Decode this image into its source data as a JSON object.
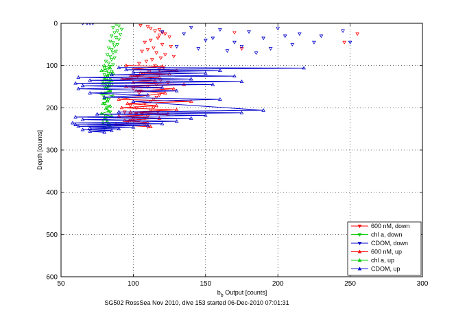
{
  "chart_data": {
    "type": "scatter",
    "title": "",
    "xlabel_main": "b",
    "xlabel_sub": "b",
    "xlabel_rest": " Output [counts]",
    "ylabel": "Depth [counts]",
    "caption": "SG502 RossSea Nov 2010, dive 153 started 06-Dec-2010 07:01:31",
    "xlim": [
      50,
      300
    ],
    "ylim": [
      0,
      600
    ],
    "y_reversed": true,
    "grid": true,
    "legend_position": "bottom-right",
    "xticks": [
      50,
      100,
      150,
      200,
      250,
      300
    ],
    "yticks": [
      0,
      100,
      200,
      300,
      400,
      500,
      600
    ],
    "series": [
      {
        "name": "600 nM, down",
        "color": "#ff0000",
        "marker": "triangle-down",
        "lines": false,
        "x": [
          105,
          110,
          112,
          118,
          115,
          120,
          122,
          118,
          125,
          117,
          112,
          108,
          120,
          126,
          114,
          110,
          106,
          116,
          122,
          128,
          119,
          113,
          109,
          104,
          115,
          121,
          118,
          111,
          107,
          103,
          112,
          119,
          124,
          116,
          110,
          105,
          118,
          114,
          108,
          102,
          112,
          117,
          106,
          110,
          100,
          104,
          96,
          108,
          112,
          98,
          116,
          104,
          100,
          110,
          114,
          94,
          102,
          108,
          98,
          246,
          255,
          170,
          175
        ],
        "y": [
          5,
          8,
          12,
          15,
          18,
          22,
          25,
          28,
          32,
          35,
          40,
          45,
          50,
          55,
          58,
          62,
          66,
          70,
          74,
          78,
          82,
          86,
          90,
          95,
          100,
          105,
          110,
          115,
          120,
          125,
          130,
          135,
          140,
          145,
          150,
          160,
          170,
          180,
          190,
          200,
          205,
          210,
          215,
          220,
          225,
          230,
          235,
          240,
          185,
          195,
          175,
          165,
          155,
          245,
          200,
          210,
          215,
          225,
          230,
          45,
          25,
          22,
          60
        ]
      },
      {
        "name": "chl a, down",
        "color": "#00cc00",
        "marker": "triangle-down",
        "lines": false,
        "x": [
          88,
          90,
          86,
          92,
          89,
          87,
          91,
          85,
          88,
          90,
          84,
          86,
          89,
          87,
          83,
          85,
          88,
          86,
          82,
          84,
          87,
          85,
          81,
          83,
          86,
          84,
          80,
          82,
          85,
          83,
          80,
          82,
          84,
          81,
          79,
          83,
          85,
          80,
          82,
          84,
          81,
          79,
          83,
          80,
          82,
          84,
          81,
          79,
          83,
          80
        ],
        "y": [
          2,
          6,
          10,
          14,
          18,
          22,
          26,
          30,
          34,
          38,
          42,
          46,
          50,
          54,
          58,
          62,
          66,
          70,
          74,
          78,
          82,
          86,
          90,
          94,
          98,
          102,
          106,
          110,
          114,
          118,
          122,
          126,
          130,
          134,
          138,
          142,
          146,
          150,
          155,
          160,
          165,
          170,
          180,
          190,
          200,
          210,
          220,
          230,
          240,
          248
        ]
      },
      {
        "name": "CDOM, down",
        "color": "#0000cc",
        "marker": "triangle-down",
        "lines": false,
        "x": [
          65,
          70,
          72,
          68,
          140,
          160,
          180,
          200,
          215,
          230,
          245,
          150,
          170,
          190,
          210,
          130,
          145,
          165,
          185,
          205,
          225,
          120,
          135,
          155,
          175,
          195,
          250
        ],
        "y": [
          0,
          0,
          0,
          0,
          10,
          15,
          20,
          12,
          25,
          30,
          18,
          40,
          45,
          35,
          50,
          55,
          60,
          65,
          70,
          30,
          45,
          20,
          25,
          35,
          55,
          60,
          45
        ]
      },
      {
        "name": "600 nM, up",
        "color": "#ff0000",
        "marker": "triangle-up",
        "lines": true,
        "x": [
          95,
          120,
          100,
          130,
          105,
          125,
          98,
          118,
          92,
          115,
          100,
          135,
          95,
          128,
          102,
          122,
          90,
          140,
          96,
          116,
          92,
          130,
          98,
          124,
          90,
          118,
          94,
          110,
          88,
          112
        ],
        "y": [
          100,
          102,
          108,
          112,
          118,
          120,
          125,
          128,
          132,
          136,
          140,
          145,
          150,
          155,
          160,
          165,
          180,
          185,
          190,
          195,
          200,
          205,
          210,
          215,
          220,
          225,
          230,
          235,
          240,
          245
        ]
      },
      {
        "name": "chl a, up",
        "color": "#00cc00",
        "marker": "triangle-up",
        "lines": true,
        "x": [
          80,
          84,
          78,
          86,
          82,
          80,
          85,
          79,
          83,
          81,
          84,
          78,
          86,
          80,
          82,
          79,
          84,
          81,
          83,
          78,
          85,
          80,
          82,
          79,
          84
        ],
        "y": [
          100,
          106,
          112,
          118,
          124,
          130,
          136,
          142,
          148,
          154,
          160,
          166,
          172,
          178,
          184,
          190,
          196,
          202,
          208,
          214,
          220,
          226,
          232,
          238,
          244
        ]
      },
      {
        "name": "CDOM, up",
        "color": "#0000cc",
        "marker": "triangle-up",
        "lines": true,
        "x": [
          90,
          218,
          95,
          160,
          100,
          150,
          85,
          170,
          62,
          140,
          70,
          175,
          60,
          155,
          65,
          120,
          62,
          130,
          70,
          110,
          80,
          160,
          100,
          190,
          90,
          175,
          75,
          150,
          60,
          140,
          65,
          130,
          58,
          120,
          60,
          110,
          62,
          100,
          70,
          90,
          65,
          85,
          70,
          80
        ],
        "y": [
          105,
          106,
          110,
          112,
          116,
          118,
          122,
          125,
          128,
          132,
          135,
          138,
          142,
          145,
          148,
          152,
          155,
          160,
          165,
          170,
          175,
          180,
          185,
          206,
          210,
          212,
          215,
          218,
          222,
          225,
          228,
          232,
          236,
          238,
          240,
          242,
          244,
          246,
          248,
          250,
          252,
          254,
          256,
          258
        ]
      }
    ]
  }
}
